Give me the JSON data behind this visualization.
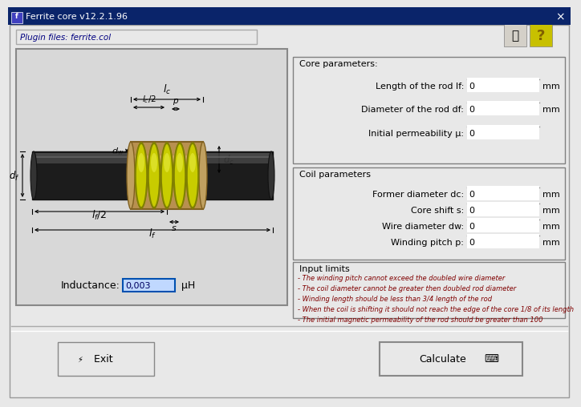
{
  "title": "Ferrite core v12.2.1.96",
  "bg_color": "#e8e8e8",
  "titlebar_color": "#0a246a",
  "white": "#ffffff",
  "plugin_label": "Plugin files: ferrite.col",
  "core_params_title": "Core parameters:",
  "core_params": [
    {
      "label": "Length of the rod lf:",
      "value": "0",
      "unit": "mm"
    },
    {
      "label": "Diameter of the rod df:",
      "value": "0",
      "unit": "mm"
    },
    {
      "label": "Initial permeability μ:",
      "value": "0",
      "unit": ""
    }
  ],
  "coil_params_title": "Coil parameters",
  "coil_params": [
    {
      "label": "Former diameter dc:",
      "value": "0",
      "unit": "mm"
    },
    {
      "label": "Core shift s:",
      "value": "0",
      "unit": "mm"
    },
    {
      "label": "Wire diameter dw:",
      "value": "0",
      "unit": "mm"
    },
    {
      "label": "Winding pitch p:",
      "value": "0",
      "unit": "mm"
    }
  ],
  "input_limits_title": "Input limits",
  "input_limits": [
    "- The winding pitch cannot exceed the doubled wire diameter",
    "- The coil diameter cannot be greater then doubled rod diameter",
    "- Winding length should be less than 3/4 length of the rod",
    "- When the coil is shifting it should not reach the edge of the core 1/8 of its length",
    "- The initial magnetic permeability of the rod should be greater than 100"
  ],
  "inductance_label": "Inductance:",
  "inductance_value": "0,003",
  "inductance_unit": "μH",
  "exit_btn": " Exit",
  "calc_btn": "Calculate"
}
